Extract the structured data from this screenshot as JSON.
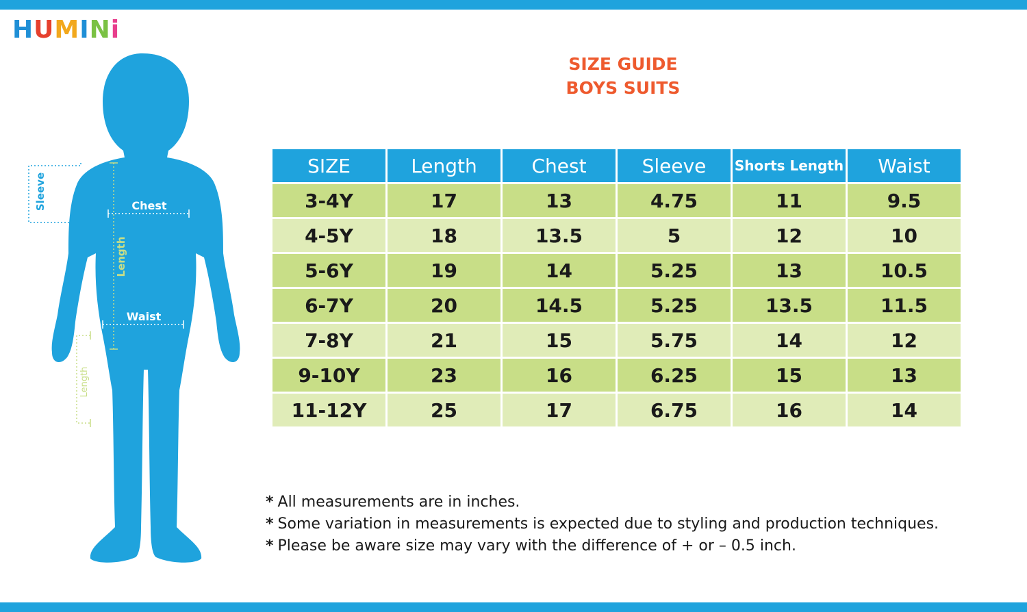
{
  "brand": {
    "letters": [
      "H",
      "U",
      "M",
      "I",
      "N",
      "i"
    ],
    "colors": [
      "#1f8fd6",
      "#e6402d",
      "#f2a81d",
      "#1f8fd6",
      "#7ac143",
      "#e83e8c"
    ]
  },
  "title": "SIZE GUIDE",
  "subtitle": "BOYS SUITS",
  "figure": {
    "labels": {
      "sleeve": "Sleeve",
      "chest": "Chest",
      "length": "Length",
      "waist": "Waist",
      "shorts_length": "Length"
    },
    "body_color": "#1fa3dd",
    "guide_blue": "#1fa3dd",
    "guide_green": "#c8de87"
  },
  "table": {
    "headers": [
      "SIZE",
      "Length",
      "Chest",
      "Sleeve",
      "Shorts Length",
      "Waist"
    ],
    "rows": [
      [
        "3-4Y",
        "17",
        "13",
        "4.75",
        "11",
        "9.5"
      ],
      [
        "4-5Y",
        "18",
        "13.5",
        "5",
        "12",
        "10"
      ],
      [
        "5-6Y",
        "19",
        "14",
        "5.25",
        "13",
        "10.5"
      ],
      [
        "6-7Y",
        "20",
        "14.5",
        "5.25",
        "13.5",
        "11.5"
      ],
      [
        "7-8Y",
        "21",
        "15",
        "5.75",
        "14",
        "12"
      ],
      [
        "9-10Y",
        "23",
        "16",
        "6.25",
        "15",
        "13"
      ],
      [
        "11-12Y",
        "25",
        "17",
        "6.75",
        "16",
        "14"
      ]
    ]
  },
  "notes": {
    "marker": "*",
    "items": [
      "All measurements are in inches.",
      "Some variation in measurements is expected due to styling and production techniques.",
      "Please be aware size may vary with the difference of + or – 0.5 inch."
    ]
  },
  "colors": {
    "header_bg": "#1fa3dd",
    "row_dark": "#c8de87",
    "row_light": "#e0ecb8",
    "title": "#ee5a2e",
    "bars": "#1fa3dd"
  }
}
